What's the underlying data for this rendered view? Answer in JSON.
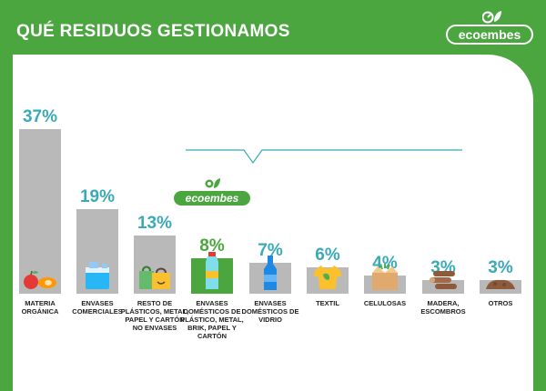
{
  "header": {
    "title": "QUÉ RESIDUOS GESTIONAMOS",
    "logo_text": "ecoembes"
  },
  "badge": {
    "text": "ecoembes"
  },
  "colors": {
    "brand_green": "#4ba640",
    "teal": "#3aa9b8",
    "bar_gray": "#b9b9b9"
  },
  "chart_data": {
    "type": "bar",
    "categories": [
      "MATERIA ORGÁNICA",
      "ENVASES COMERCIALES",
      "RESTO DE PLÁSTICOS, METAL, PAPEL Y CARTÓN NO ENVASES",
      "ENVASES DOMÉSTICOS DE PLÁSTICO, METAL, BRIK, PAPEL Y CARTÓN",
      "ENVASES DOMÉSTICOS DE VIDRIO",
      "TEXTIL",
      "CELULOSAS",
      "MADERA, ESCOMBROS",
      "OTROS"
    ],
    "values": [
      37,
      19,
      13,
      8,
      7,
      6,
      4,
      3,
      3
    ],
    "value_labels": [
      "37%",
      "19%",
      "13%",
      "8%",
      "7%",
      "6%",
      "4%",
      "3%",
      "3%"
    ],
    "highlighted_index": 3,
    "icons": [
      "fruit-icon",
      "water-jug-icon",
      "shopping-bag-icon",
      "plastic-bottle-icon",
      "glass-bottle-icon",
      "tshirt-icon",
      "cardboard-box-icon",
      "wood-logs-icon",
      "rubble-icon"
    ]
  }
}
